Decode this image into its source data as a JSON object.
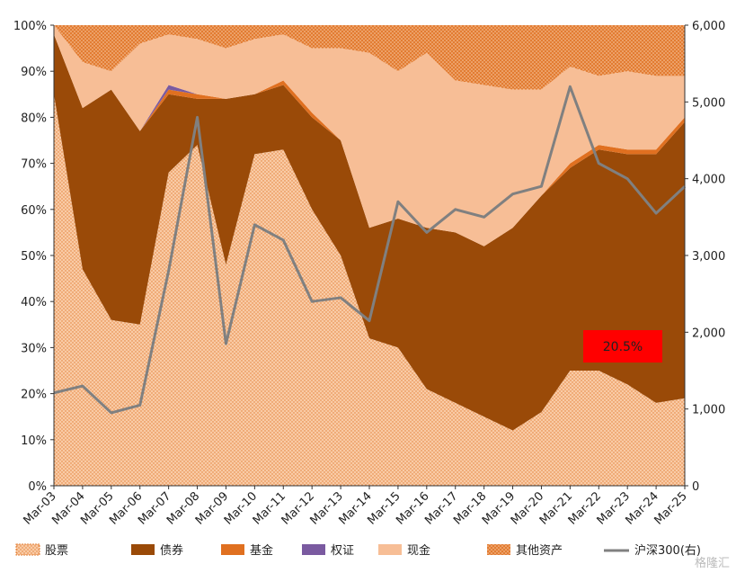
{
  "chart_data": {
    "type": "area",
    "x": [
      "Mar-03",
      "Mar-04",
      "Mar-05",
      "Mar-06",
      "Mar-07",
      "Mar-08",
      "Mar-09",
      "Mar-10",
      "Mar-11",
      "Mar-12",
      "Mar-13",
      "Mar-14",
      "Mar-15",
      "Mar-16",
      "Mar-17",
      "Mar-18",
      "Mar-19",
      "Mar-20",
      "Mar-21",
      "Mar-22",
      "Mar-23",
      "Mar-24",
      "Mar-25"
    ],
    "y_left": {
      "min": 0,
      "max": 100,
      "ticks": [
        "0%",
        "10%",
        "20%",
        "30%",
        "40%",
        "50%",
        "60%",
        "70%",
        "80%",
        "90%",
        "100%"
      ]
    },
    "y_right": {
      "min": 0,
      "max": 6000,
      "ticks": [
        "0",
        "1,000",
        "2,000",
        "3,000",
        "4,000",
        "5,000",
        "6,000"
      ]
    },
    "stack_series": [
      {
        "name": "股票",
        "color": "#E8843A",
        "pattern": "dots-light",
        "values": [
          85,
          47,
          36,
          35,
          68,
          74,
          48,
          72,
          73,
          60,
          50,
          32,
          30,
          21,
          18,
          15,
          12,
          16,
          25,
          25,
          22,
          18,
          19
        ]
      },
      {
        "name": "债券",
        "color": "#9A4A08",
        "pattern": "solid",
        "values": [
          13,
          35,
          50,
          42,
          17,
          10,
          36,
          13,
          14,
          20,
          25,
          24,
          28,
          35,
          37,
          37,
          44,
          47,
          44,
          48,
          50,
          54,
          60
        ]
      },
      {
        "name": "基金",
        "color": "#E07020",
        "pattern": "solid",
        "values": [
          0,
          0,
          0,
          0,
          1,
          1,
          0,
          0,
          1,
          1,
          0,
          0,
          0,
          0,
          0,
          0,
          0,
          0,
          1,
          1,
          1,
          1,
          1
        ]
      },
      {
        "name": "权证",
        "color": "#7A5AA0",
        "pattern": "solid",
        "values": [
          0,
          0,
          0,
          0,
          1,
          0,
          0,
          0,
          0,
          0,
          0,
          0,
          0,
          0,
          0,
          0,
          0,
          0,
          0,
          0,
          0,
          0,
          0
        ]
      },
      {
        "name": "现金",
        "color": "#F7BE96",
        "pattern": "solid",
        "values": [
          2,
          10,
          4,
          19,
          11,
          12,
          11,
          12,
          10,
          14,
          20,
          38,
          32,
          38,
          33,
          35,
          30,
          23,
          21,
          15,
          17,
          16,
          9
        ]
      },
      {
        "name": "其他资产",
        "color": "#E8843A",
        "pattern": "dots-dense",
        "values": [
          0,
          8,
          10,
          4,
          2,
          3,
          5,
          3,
          2,
          5,
          5,
          6,
          10,
          6,
          12,
          13,
          14,
          14,
          9,
          11,
          10,
          11,
          11
        ]
      }
    ],
    "line_series": {
      "name": "沪深300(右)",
      "color": "#808080",
      "axis": "right",
      "values": [
        1210,
        1300,
        950,
        1050,
        2800,
        4800,
        1850,
        3400,
        3200,
        2400,
        2450,
        2150,
        3700,
        3300,
        3600,
        3500,
        3800,
        3900,
        5200,
        4200,
        4000,
        3550,
        3900
      ]
    },
    "annotation": {
      "text": "20.5%",
      "color": "#FF0000"
    },
    "legend_position": "bottom",
    "grid": false
  },
  "watermark": "格隆汇"
}
